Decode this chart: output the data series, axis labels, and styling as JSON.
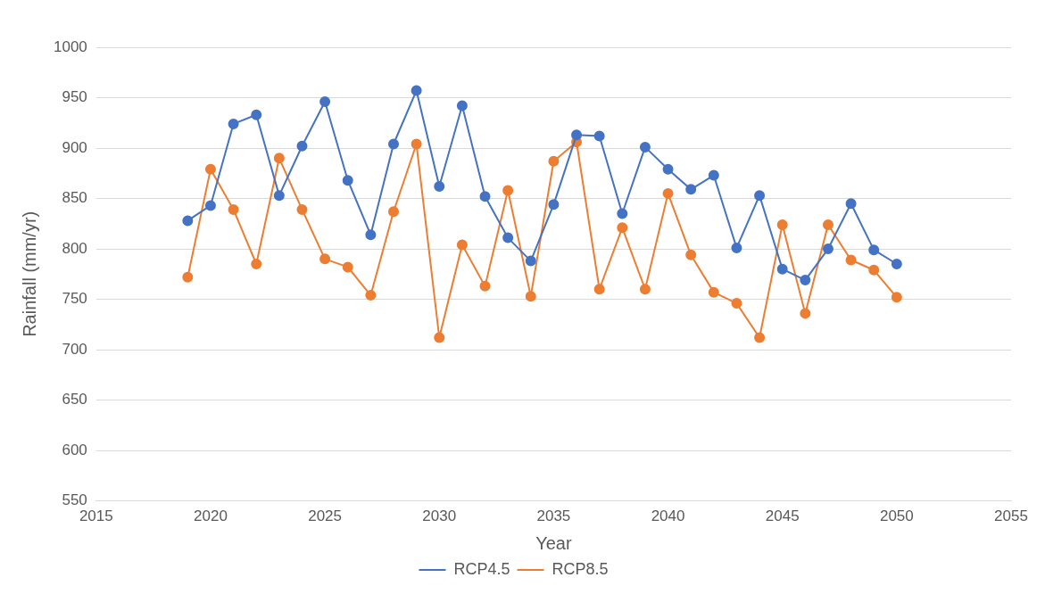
{
  "chart_data": {
    "type": "line",
    "xlabel": "Year",
    "ylabel": "Rainfall (mm/yr)",
    "x": [
      2019,
      2020,
      2021,
      2022,
      2023,
      2024,
      2025,
      2026,
      2027,
      2028,
      2029,
      2030,
      2031,
      2032,
      2033,
      2034,
      2035,
      2036,
      2037,
      2038,
      2039,
      2040,
      2041,
      2042,
      2043,
      2044,
      2045,
      2046,
      2047,
      2048,
      2049,
      2050
    ],
    "series": [
      {
        "name": "RCP4.5",
        "color": "#4472c4",
        "values": [
          828,
          843,
          924,
          933,
          853,
          902,
          946,
          868,
          814,
          904,
          957,
          862,
          942,
          852,
          811,
          788,
          844,
          913,
          912,
          835,
          901,
          879,
          859,
          873,
          801,
          853,
          780,
          769,
          800,
          845,
          799,
          785
        ]
      },
      {
        "name": "RCP8.5",
        "color": "#ed7d31",
        "values": [
          772,
          879,
          839,
          785,
          890,
          839,
          790,
          782,
          754,
          837,
          904,
          712,
          804,
          763,
          858,
          753,
          887,
          906,
          760,
          821,
          760,
          855,
          794,
          757,
          746,
          712,
          824,
          736,
          824,
          789,
          779,
          752
        ]
      }
    ],
    "xlim": [
      2015,
      2055
    ],
    "xticks": [
      2015,
      2020,
      2025,
      2030,
      2035,
      2040,
      2045,
      2050,
      2055
    ],
    "ylim": [
      550,
      1000
    ],
    "yticks": [
      550,
      600,
      650,
      700,
      750,
      800,
      850,
      900,
      950,
      1000
    ],
    "grid": "y",
    "legend": "bottom",
    "marker": "circle",
    "line_style": "solid"
  }
}
